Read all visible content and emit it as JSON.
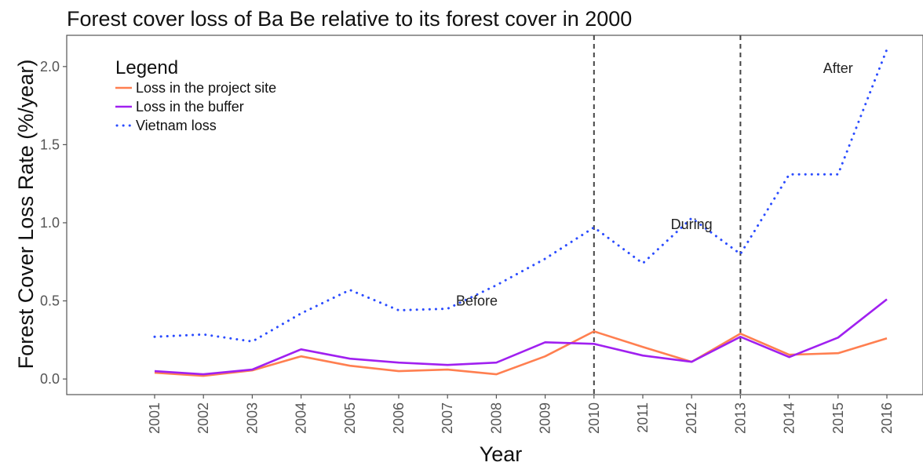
{
  "chart_data": {
    "type": "line",
    "title": "Forest cover loss of Ba Be relative to its forest cover in 2000",
    "xlabel": "Year",
    "ylabel": "Forest Cover Loss Rate (%/year)",
    "ylim": [
      -0.1,
      2.2
    ],
    "yticks": [
      "0.0",
      "0.5",
      "1.0",
      "1.5",
      "2.0"
    ],
    "categories": [
      "2001",
      "2002",
      "2003",
      "2004",
      "2005",
      "2006",
      "2007",
      "2008",
      "2009",
      "2010",
      "2011",
      "2012",
      "2013",
      "2014",
      "2015",
      "2016"
    ],
    "series": [
      {
        "name": "Loss in the project site",
        "color": "#ff7f50",
        "style": "solid",
        "values": [
          0.04,
          0.02,
          0.055,
          0.145,
          0.085,
          0.05,
          0.06,
          0.03,
          0.145,
          0.305,
          0.205,
          0.11,
          0.29,
          0.155,
          0.165,
          0.26
        ]
      },
      {
        "name": "Loss in the buffer",
        "color": "#a020f0",
        "style": "solid",
        "values": [
          0.05,
          0.03,
          0.06,
          0.19,
          0.13,
          0.105,
          0.09,
          0.105,
          0.235,
          0.225,
          0.15,
          0.11,
          0.27,
          0.14,
          0.265,
          0.51
        ]
      },
      {
        "name": "Vietnam loss",
        "color": "#2b4cff",
        "style": "dotted",
        "values": [
          0.27,
          0.285,
          0.24,
          0.42,
          0.57,
          0.44,
          0.45,
          0.6,
          0.77,
          0.97,
          0.74,
          1.03,
          0.8,
          1.31,
          1.31,
          2.11
        ]
      }
    ],
    "legend": {
      "title": "Legend",
      "placement": "top-left"
    },
    "vlines": [
      "2010",
      "2013"
    ],
    "annotations": [
      {
        "text": "Before",
        "x": "2007.6",
        "y": 0.5
      },
      {
        "text": "During",
        "x": "2012",
        "y": 0.99
      },
      {
        "text": "After",
        "x": "2015",
        "y": 1.99
      }
    ],
    "grid": false
  }
}
